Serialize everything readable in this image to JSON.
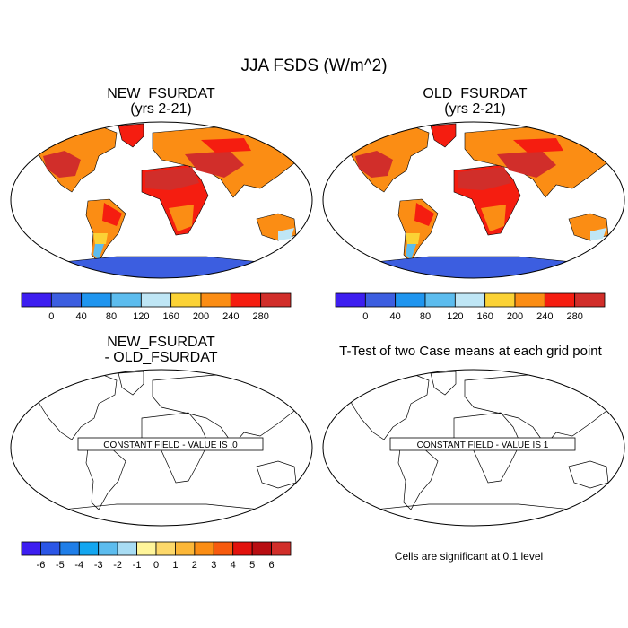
{
  "main_title": "JJA FSDS (W/m^2)",
  "panels": [
    {
      "title_line1": "NEW_FSURDAT",
      "title_line2": "(yrs 2-21)",
      "overlay": ""
    },
    {
      "title_line1": "OLD_FSURDAT",
      "title_line2": "(yrs 2-21)",
      "overlay": ""
    },
    {
      "title_line1": "NEW_FSURDAT",
      "title_line2": "- OLD_FSURDAT",
      "overlay": "CONSTANT FIELD - VALUE IS .0"
    },
    {
      "title_line1": "T-Test of two Case means at each grid point",
      "overlay": "CONSTANT FIELD - VALUE IS 1"
    }
  ],
  "colorbar_fsds": {
    "labels": [
      "0",
      "40",
      "80",
      "120",
      "160",
      "200",
      "240",
      "280"
    ],
    "colors": [
      "#3d1ef0",
      "#3c5ee0",
      "#1f95ef",
      "#5cbcee",
      "#bfe6f5",
      "#fbd235",
      "#fb8d14",
      "#f51d10",
      "#d12e2a"
    ]
  },
  "colorbar_diff": {
    "labels": [
      "-6",
      "-5",
      "-4",
      "-3",
      "-2",
      "-1",
      "0",
      "1",
      "2",
      "3",
      "4",
      "5",
      "6"
    ],
    "colors": [
      "#3d1ef0",
      "#2b56e6",
      "#1f7ee8",
      "#13a6f0",
      "#5cbcee",
      "#a8dcf3",
      "#fff59a",
      "#fdd86a",
      "#fcb738",
      "#fb8d14",
      "#f75a0e",
      "#e2120d",
      "#b80d11",
      "#d12e2a"
    ]
  },
  "significance_note": "Cells are significant at 0.1 level",
  "map_colors": {
    "hot": "#d12e2a",
    "red": "#f51d10",
    "orange": "#fb8d14",
    "yellow": "#fbd235",
    "lightblue": "#bfe6f5",
    "midblue": "#5cbcee",
    "blue": "#1f95ef",
    "antarctic": "#3c5ee0"
  }
}
